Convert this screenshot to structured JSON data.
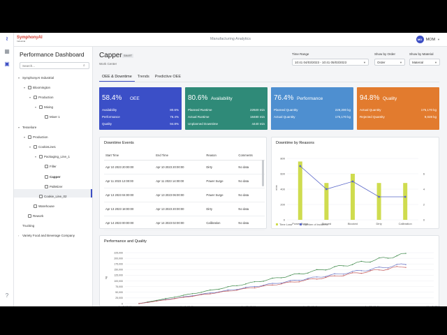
{
  "app": {
    "logo_text": "SymphonyAI",
    "logo_sub": "Industrial",
    "title": "Manufacturing Analytics",
    "user_initials": "MO",
    "user_name": "MOM"
  },
  "sidebar": {
    "title": "Performance Dashboard",
    "search_placeholder": "Search...",
    "tree": [
      {
        "label": "SymphonyAI Industrial"
      },
      {
        "label": "Bloomington"
      },
      {
        "label": "Production"
      },
      {
        "label": "Mixing"
      },
      {
        "label": "Mixer 1"
      },
      {
        "label": "Tesseliore"
      },
      {
        "label": "Production"
      },
      {
        "label": "CookieLine1"
      },
      {
        "label": "Packaging_Line_1"
      },
      {
        "label": "Filler"
      },
      {
        "label": "Capper"
      },
      {
        "label": "Palletizer"
      },
      {
        "label": "Cookie_Line_02"
      },
      {
        "label": "Warehouse"
      },
      {
        "label": "Rework"
      },
      {
        "label": "Trucking"
      },
      {
        "label": "Variety Food and Beverage Company"
      }
    ]
  },
  "header": {
    "title": "Capper",
    "badge": "SMART",
    "subtitle": "Work Center",
    "time_range_label": "Time Range",
    "time_range_value": "10:41  04/03/2023 - 10:41  05/03/2023",
    "show_by_order_label": "Show by Order",
    "show_by_order_value": "Order",
    "show_by_material_label": "Show by Material",
    "show_by_material_value": "Material"
  },
  "tabs": [
    {
      "label": "OEE & Downtime"
    },
    {
      "label": "Trends"
    },
    {
      "label": "Predictive OEE"
    }
  ],
  "kpis": [
    {
      "value": "58.4%",
      "label": "OEE",
      "color": "#3b4fc7",
      "rows": [
        {
          "k": "Availability",
          "v": "80.6%"
        },
        {
          "k": "Performance",
          "v": "76.4%"
        },
        {
          "k": "Quality",
          "v": "94.8%"
        }
      ]
    },
    {
      "value": "80.6%",
      "label": "Availability",
      "color": "#2f8a78",
      "rows": [
        {
          "k": "Planned Runtime",
          "v": "22920 min"
        },
        {
          "k": "Actual Runtime",
          "v": "18480 min"
        },
        {
          "k": "Unplanned Downtime",
          "v": "4440 min"
        }
      ]
    },
    {
      "value": "76.4%",
      "label": "Performance",
      "color": "#4e8fd0",
      "rows": [
        {
          "k": "Planned Quantity",
          "v": "229,200 kg"
        },
        {
          "k": "Actual Quantity",
          "v": "175,170 kg"
        }
      ]
    },
    {
      "value": "94.8%",
      "label": "Quality",
      "color": "#e27b2e",
      "rows": [
        {
          "k": "Actual Quantity",
          "v": "175,170 kg"
        },
        {
          "k": "Rejected Quantity",
          "v": "9,028 kg"
        }
      ]
    }
  ],
  "downtime_events": {
    "title": "Downtime Events",
    "columns": [
      "Start Time",
      "End Time",
      "Reason",
      "Comments"
    ],
    "rows": [
      [
        "Apr 10 2023 20:00:00",
        "Apr 10 2023 20:00:00",
        "Dirty",
        "No data"
      ],
      [
        "Apr 11 2023 12:00:00",
        "Apr 11 2023 14:00:00",
        "Power Surge",
        "No data"
      ],
      [
        "Apr 13 2023 04:00:00",
        "Apr 13 2023 06:00:00",
        "Power Surge",
        "No data"
      ],
      [
        "Apr 13 2023 18:00:00",
        "Apr 13 2023 20:00:00",
        "Dirty",
        "No data"
      ],
      [
        "Apr 14 2023 00:00:00",
        "Apr 14 2023 02:00:00",
        "Calibration",
        "No data"
      ]
    ]
  },
  "downtime_by_reasons": {
    "title": "Downtime by Reasons",
    "ylabel": "mins",
    "legend_bar": "Time Loss",
    "legend_line": "Number of incidents",
    "bar_color": "#cfdc4f",
    "line_color": "#5a67c9",
    "categories": [
      "Power Surge",
      "Starved",
      "Blocked",
      "Dirty",
      "Calibration"
    ],
    "time_loss": [
      760,
      480,
      600,
      480,
      480
    ],
    "incidents": [
      7,
      4,
      5,
      3,
      3
    ],
    "y_left_ticks": [
      "0",
      "200",
      "400",
      "600",
      "800"
    ],
    "y_right_ticks": [
      "0",
      "2",
      "4",
      "6"
    ]
  },
  "performance_quality": {
    "title": "Performance and Quality",
    "ylabel": "kg",
    "y_ticks": [
      "0",
      "25,000",
      "50,000",
      "75,000",
      "100,000",
      "125,000",
      "150,000",
      "175,000",
      "200,000",
      "225,000"
    ],
    "x_ticks": [
      "Apr 3, 10:41",
      "Apr 9, 10:41",
      "Apr 15, 10:41",
      "Apr 21, 10:41",
      "Apr 27, 10:41",
      "May 3, 10:41"
    ],
    "series": [
      {
        "color": "#3f8a4a",
        "end": 225000
      },
      {
        "color": "#6a74c4",
        "end": 180000
      },
      {
        "color": "#c45a5a",
        "end": 170000
      }
    ]
  }
}
